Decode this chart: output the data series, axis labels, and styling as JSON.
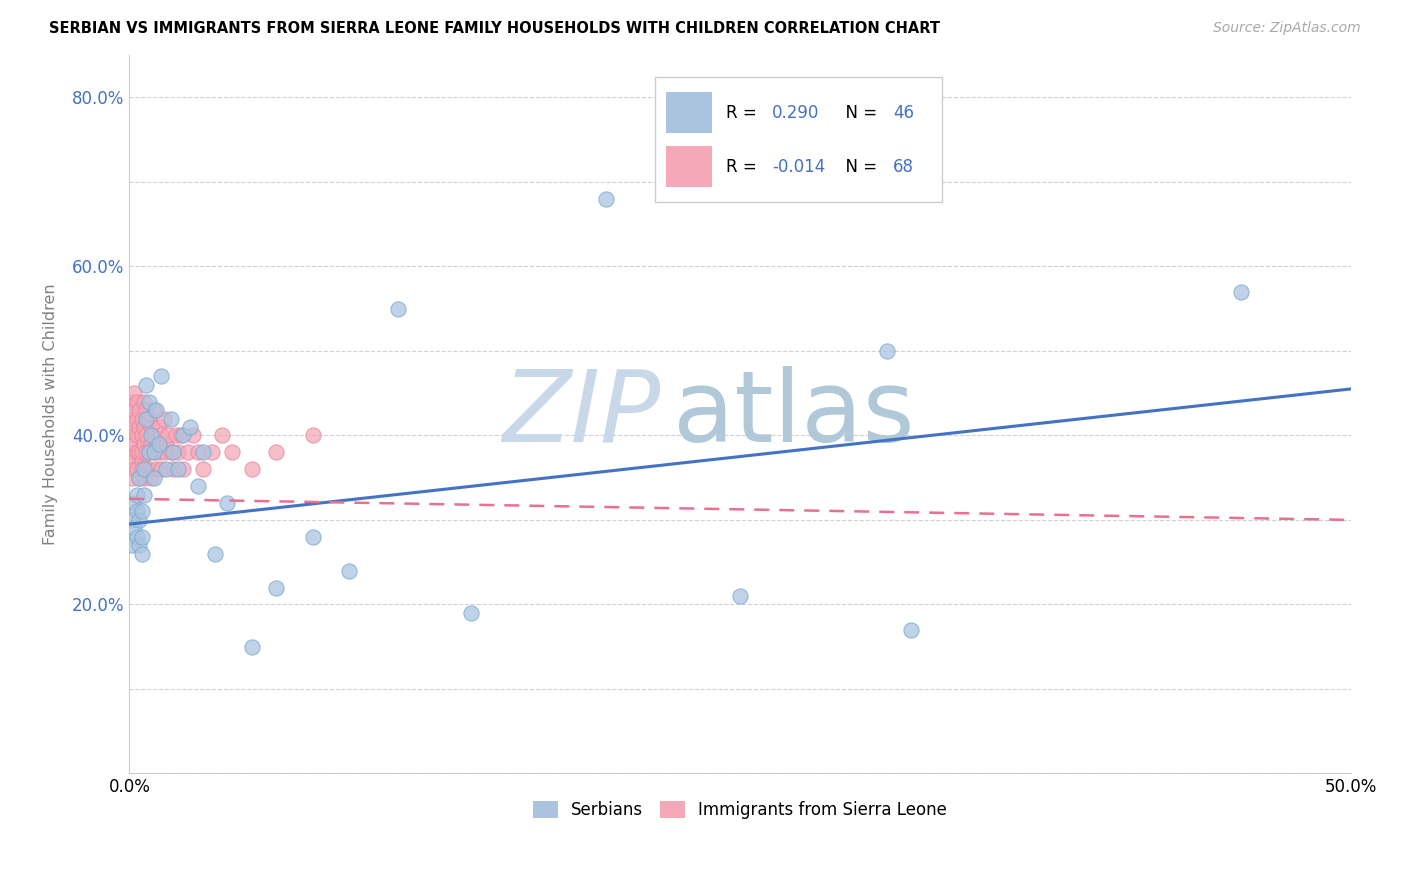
{
  "title": "SERBIAN VS IMMIGRANTS FROM SIERRA LEONE FAMILY HOUSEHOLDS WITH CHILDREN CORRELATION CHART",
  "source": "Source: ZipAtlas.com",
  "ylabel": "Family Households with Children",
  "xlim": [
    0.0,
    0.5
  ],
  "ylim": [
    0.0,
    0.85
  ],
  "serbian_color": "#aac4e0",
  "serbian_edge_color": "#7aaad0",
  "sierra_leone_color": "#f4a8b8",
  "sierra_leone_edge_color": "#e888a0",
  "serbian_line_color": "#4472c4",
  "sierra_leone_line_color": "#e87090",
  "grid_color": "#cccccc",
  "y_tick_color": "#4472c4",
  "legend_R_color": "#4472c4",
  "watermark_zip_color": "#c8d8e8",
  "watermark_atlas_color": "#b0c8d8",
  "serbian_R": 0.29,
  "serbian_N": 46,
  "sierra_leone_R": -0.014,
  "sierra_leone_N": 68,
  "serbian_line_x0": 0.0,
  "serbian_line_y0": 0.295,
  "serbian_line_x1": 0.5,
  "serbian_line_y1": 0.455,
  "sierra_line_x0": 0.0,
  "sierra_line_y0": 0.325,
  "sierra_line_x1": 0.5,
  "sierra_line_y1": 0.3,
  "serbian_points_x": [
    0.001,
    0.001,
    0.002,
    0.002,
    0.003,
    0.003,
    0.003,
    0.004,
    0.004,
    0.004,
    0.005,
    0.005,
    0.005,
    0.006,
    0.006,
    0.007,
    0.007,
    0.008,
    0.008,
    0.009,
    0.01,
    0.01,
    0.011,
    0.012,
    0.013,
    0.015,
    0.017,
    0.018,
    0.02,
    0.022,
    0.025,
    0.028,
    0.03,
    0.035,
    0.04,
    0.05,
    0.06,
    0.075,
    0.09,
    0.11,
    0.14,
    0.195,
    0.25,
    0.31,
    0.32,
    0.455
  ],
  "serbian_points_y": [
    0.3,
    0.27,
    0.32,
    0.29,
    0.31,
    0.28,
    0.33,
    0.27,
    0.3,
    0.35,
    0.28,
    0.31,
    0.26,
    0.36,
    0.33,
    0.42,
    0.46,
    0.38,
    0.44,
    0.4,
    0.38,
    0.35,
    0.43,
    0.39,
    0.47,
    0.36,
    0.42,
    0.38,
    0.36,
    0.4,
    0.41,
    0.34,
    0.38,
    0.26,
    0.32,
    0.15,
    0.22,
    0.28,
    0.24,
    0.55,
    0.19,
    0.68,
    0.21,
    0.5,
    0.17,
    0.57
  ],
  "sierra_points_x": [
    0.001,
    0.001,
    0.001,
    0.001,
    0.001,
    0.002,
    0.002,
    0.002,
    0.002,
    0.002,
    0.002,
    0.003,
    0.003,
    0.003,
    0.003,
    0.003,
    0.004,
    0.004,
    0.004,
    0.004,
    0.005,
    0.005,
    0.005,
    0.005,
    0.005,
    0.006,
    0.006,
    0.006,
    0.006,
    0.007,
    0.007,
    0.007,
    0.007,
    0.008,
    0.008,
    0.008,
    0.009,
    0.009,
    0.009,
    0.01,
    0.01,
    0.01,
    0.011,
    0.011,
    0.012,
    0.012,
    0.013,
    0.013,
    0.014,
    0.014,
    0.015,
    0.016,
    0.017,
    0.018,
    0.019,
    0.02,
    0.021,
    0.022,
    0.024,
    0.026,
    0.028,
    0.03,
    0.034,
    0.038,
    0.042,
    0.05,
    0.06,
    0.075
  ],
  "sierra_points_y": [
    0.44,
    0.41,
    0.38,
    0.42,
    0.35,
    0.43,
    0.4,
    0.37,
    0.45,
    0.36,
    0.39,
    0.42,
    0.38,
    0.36,
    0.4,
    0.44,
    0.41,
    0.38,
    0.35,
    0.43,
    0.4,
    0.42,
    0.37,
    0.38,
    0.36,
    0.44,
    0.41,
    0.39,
    0.35,
    0.4,
    0.38,
    0.43,
    0.36,
    0.42,
    0.38,
    0.36,
    0.41,
    0.39,
    0.35,
    0.4,
    0.38,
    0.43,
    0.36,
    0.39,
    0.41,
    0.38,
    0.4,
    0.36,
    0.42,
    0.38,
    0.39,
    0.4,
    0.38,
    0.36,
    0.4,
    0.38,
    0.4,
    0.36,
    0.38,
    0.4,
    0.38,
    0.36,
    0.38,
    0.4,
    0.38,
    0.36,
    0.38,
    0.4
  ]
}
